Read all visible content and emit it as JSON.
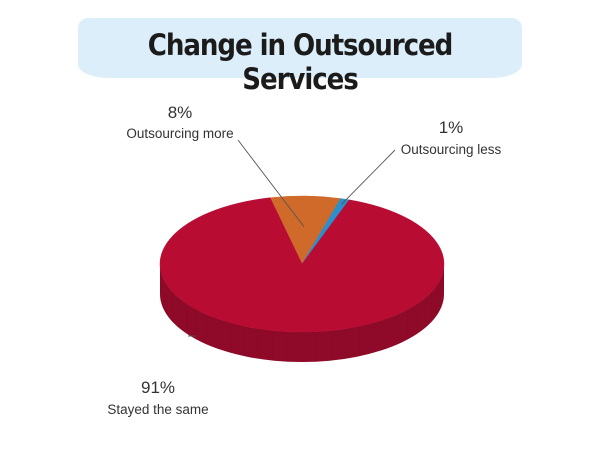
{
  "chart_data": {
    "type": "pie",
    "title": "Change in Outsourced Services",
    "slices": [
      {
        "label": "Stayed the same",
        "value": 91,
        "value_label": "91%",
        "color": "#b80c33",
        "side_color": "#8e0a28"
      },
      {
        "label": "Outsourcing more",
        "value": 8,
        "value_label": "8%",
        "color": "#cf6a2a",
        "side_color": "#a2501f"
      },
      {
        "label": "Outsourcing less",
        "value": 1,
        "value_label": "1%",
        "color": "#2a8fcc",
        "side_color": "#1e6e9f"
      }
    ],
    "style": "3d",
    "legend": "none"
  }
}
